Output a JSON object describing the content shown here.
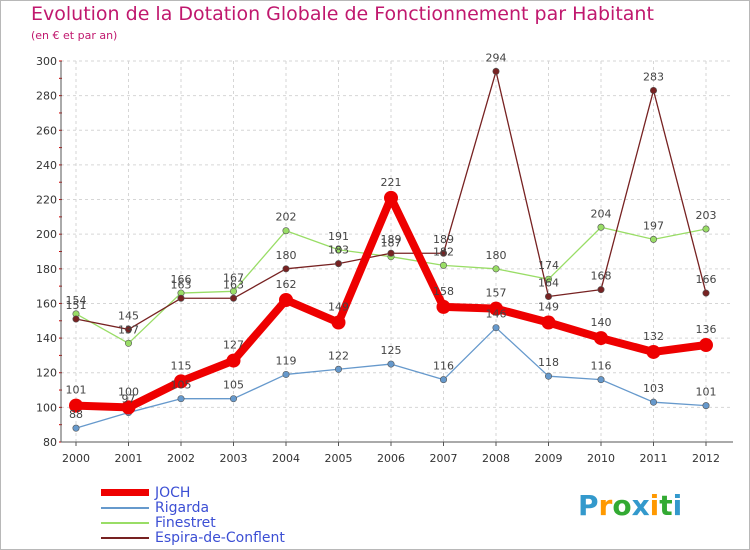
{
  "chart_data": {
    "type": "line",
    "title": "Evolution de la Dotation Globale de Fonctionnement par Habitant",
    "subtitle": "(en € et par an)",
    "xlabel": "",
    "ylabel": "",
    "x": [
      "2000",
      "2001",
      "2002",
      "2003",
      "2004",
      "2005",
      "2006",
      "2007",
      "2008",
      "2009",
      "2010",
      "2011",
      "2012"
    ],
    "ylim": [
      80,
      300
    ],
    "yticks": [
      "80",
      "100",
      "120",
      "140",
      "160",
      "180",
      "200",
      "220",
      "240",
      "260",
      "280",
      "300"
    ],
    "grid": true,
    "legend_position": "bottom-left",
    "series": [
      {
        "name": "JOCH",
        "color": "#ee0000",
        "values": [
          101,
          100,
          115,
          127,
          162,
          149,
          221,
          158,
          157,
          149,
          140,
          132,
          136
        ]
      },
      {
        "name": "Rigarda",
        "color": "#6699cc",
        "values": [
          88,
          97,
          105,
          105,
          119,
          122,
          125,
          116,
          146,
          118,
          116,
          103,
          101
        ]
      },
      {
        "name": "Finestret",
        "color": "#99dd66",
        "values": [
          154,
          137,
          166,
          167,
          202,
          191,
          187,
          182,
          180,
          174,
          204,
          197,
          203
        ]
      },
      {
        "name": "Espira-de-Conflent",
        "color": "#772222",
        "values": [
          151,
          145,
          163,
          163,
          180,
          183,
          189,
          189,
          294,
          164,
          168,
          283,
          166
        ]
      }
    ]
  },
  "brand": {
    "letters": [
      "P",
      "r",
      "o",
      "x",
      "i",
      "t",
      "i"
    ],
    "colors": [
      "#3399cc",
      "#ff9900",
      "#33aa33",
      "#3399cc",
      "#ff9900",
      "#33aa33",
      "#3399cc"
    ]
  }
}
